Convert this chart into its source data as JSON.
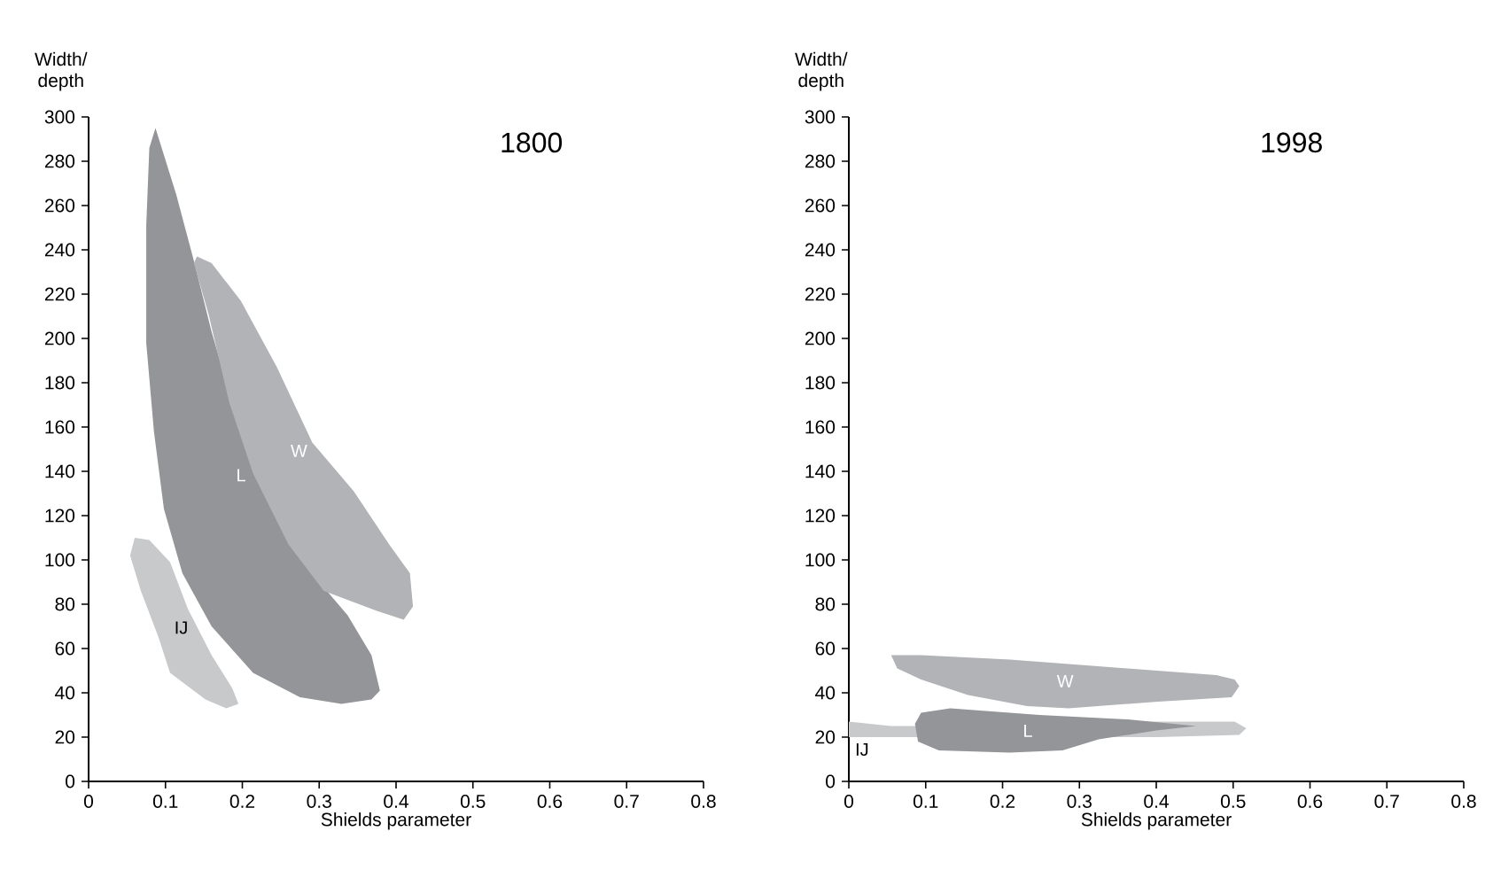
{
  "chart_data": [
    {
      "type": "area",
      "title": "1800",
      "xlabel": "Shields parameter",
      "ylabel": "Width/ depth",
      "xlim": [
        0,
        0.8
      ],
      "xticks": [
        0,
        0.1,
        0.2,
        0.3,
        0.4,
        0.5,
        0.6,
        0.7,
        0.8
      ],
      "ylim": [
        0,
        300
      ],
      "yticks": [
        0,
        20,
        40,
        60,
        80,
        100,
        120,
        140,
        160,
        180,
        200,
        220,
        240,
        260,
        280,
        300
      ],
      "grid": false,
      "series": [
        {
          "name": "L",
          "color": "#939598",
          "x": [
            0.087,
            0.114,
            0.137,
            0.16,
            0.191,
            0.229,
            0.283,
            0.337,
            0.368,
            0.379,
            0.368,
            0.329,
            0.275,
            0.214,
            0.16,
            0.122,
            0.098,
            0.085,
            0.075,
            0.075,
            0.079
          ],
          "values": [
            295,
            265,
            235,
            203,
            166,
            131,
            97,
            75,
            57,
            41,
            37,
            35,
            38,
            49,
            70,
            94,
            123,
            158,
            198,
            251,
            286
          ]
        },
        {
          "name": "W",
          "color": "#b1b3b6",
          "x": [
            0.141,
            0.16,
            0.198,
            0.245,
            0.291,
            0.345,
            0.391,
            0.418,
            0.422,
            0.41,
            0.375,
            0.306,
            0.26,
            0.214,
            0.183,
            0.156,
            0.137
          ],
          "values": [
            237,
            234,
            217,
            187,
            153,
            131,
            107,
            94,
            79,
            73,
            77,
            86,
            107,
            139,
            171,
            211,
            234
          ]
        },
        {
          "name": "IJ",
          "color": "#c8c9cb",
          "x": [
            0.06,
            0.079,
            0.106,
            0.129,
            0.16,
            0.187,
            0.195,
            0.179,
            0.152,
            0.106,
            0.091,
            0.068,
            0.054
          ],
          "values": [
            110,
            109,
            99,
            78,
            57,
            42,
            35,
            33,
            37,
            49,
            65,
            86,
            102
          ]
        }
      ]
    },
    {
      "type": "area",
      "title": "1998",
      "xlabel": "Shields parameter",
      "ylabel": "Width/ depth",
      "xlim": [
        0,
        0.8
      ],
      "xticks": [
        0,
        0.1,
        0.2,
        0.3,
        0.4,
        0.5,
        0.6,
        0.7,
        0.8
      ],
      "ylim": [
        0,
        300
      ],
      "yticks": [
        0,
        20,
        40,
        60,
        80,
        100,
        120,
        140,
        160,
        180,
        200,
        220,
        240,
        260,
        280,
        300
      ],
      "grid": false,
      "series": [
        {
          "name": "IJ",
          "color": "#c8c9cb",
          "x": [
            0,
            0.055,
            0.086,
            0.2,
            0.3,
            0.402,
            0.502,
            0.517,
            0.508,
            0.402,
            0.171,
            0
          ],
          "values": [
            27,
            25,
            25,
            null,
            null,
            27,
            27,
            24,
            21,
            20,
            null,
            20
          ]
        },
        {
          "name": "W",
          "color": "#b1b3b6",
          "x": [
            0.055,
            0.094,
            0.21,
            0.363,
            0.478,
            0.502,
            0.508,
            0.498,
            0.402,
            0.286,
            0.232,
            0.155,
            0.094,
            0.063
          ],
          "values": [
            57,
            57,
            55,
            51,
            48,
            46,
            43,
            38,
            36,
            33,
            34,
            39,
            46,
            51
          ]
        },
        {
          "name": "L",
          "color": "#939598",
          "x": [
            0.094,
            0.132,
            0.248,
            0.363,
            0.452,
            0.4,
            0.325,
            0.278,
            0.209,
            0.117,
            0.09,
            0.086
          ],
          "values": [
            31,
            33,
            30,
            28,
            25,
            23,
            19,
            14,
            13,
            14,
            18,
            26
          ]
        }
      ]
    }
  ]
}
